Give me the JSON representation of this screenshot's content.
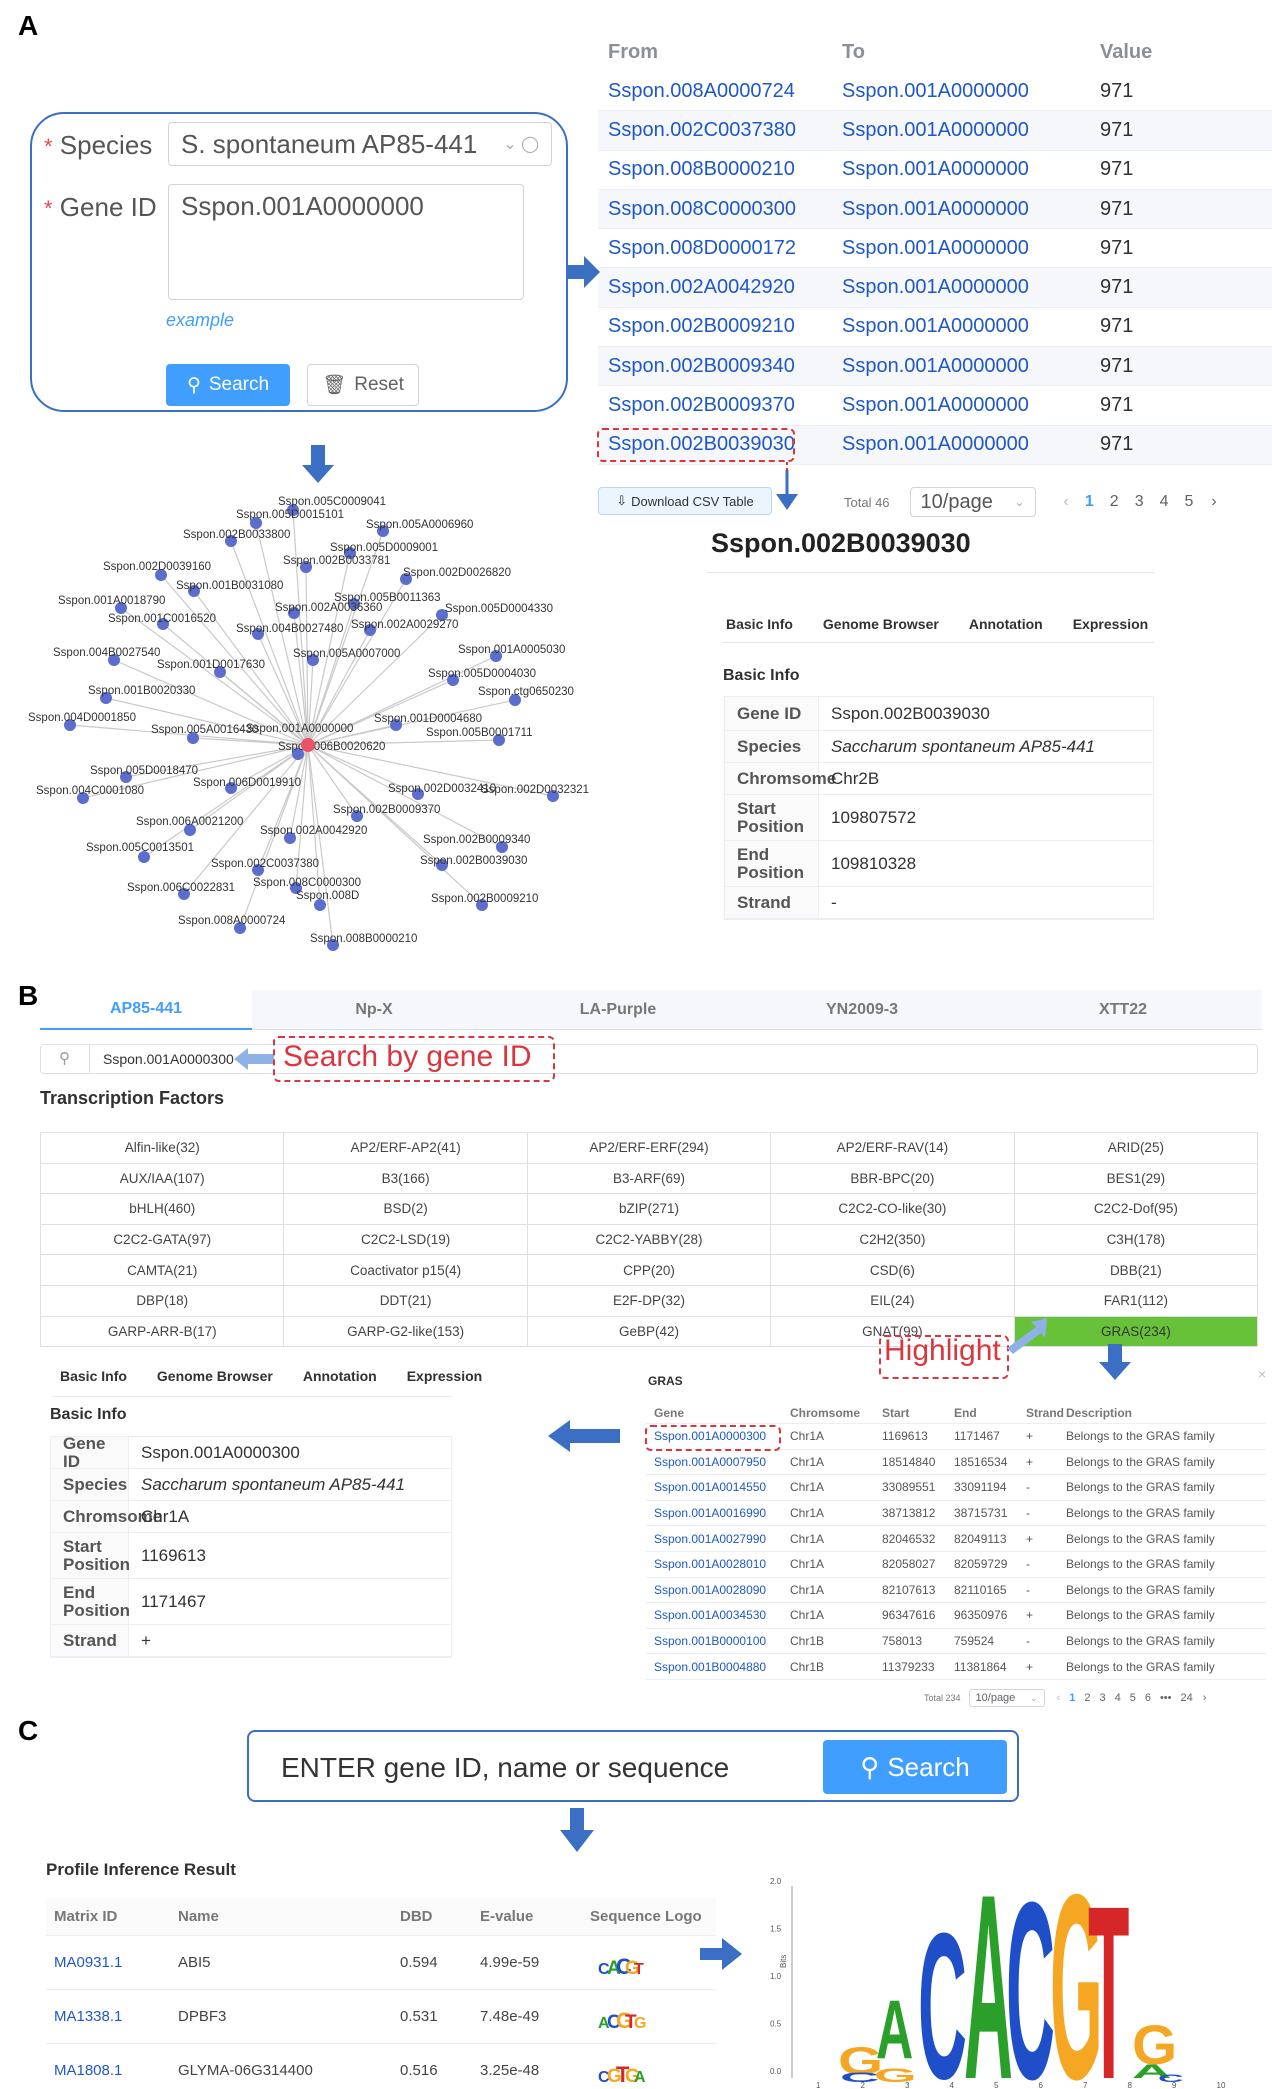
{
  "panels": {
    "a": "A",
    "b": "B",
    "c": "C"
  },
  "search_form": {
    "species_label": "Species",
    "species_value": "S. spontaneum AP85-441",
    "geneid_label": "Gene ID",
    "geneid_value": "Sspon.001A0000000",
    "example": "example",
    "search": "Search",
    "reset": "Reset"
  },
  "relation_table": {
    "headers": [
      "From",
      "To",
      "Value"
    ],
    "rows": [
      [
        "Sspon.008A0000724",
        "Sspon.001A0000000",
        "971"
      ],
      [
        "Sspon.002C0037380",
        "Sspon.001A0000000",
        "971"
      ],
      [
        "Sspon.008B0000210",
        "Sspon.001A0000000",
        "971"
      ],
      [
        "Sspon.008C0000300",
        "Sspon.001A0000000",
        "971"
      ],
      [
        "Sspon.008D0000172",
        "Sspon.001A0000000",
        "971"
      ],
      [
        "Sspon.002A0042920",
        "Sspon.001A0000000",
        "971"
      ],
      [
        "Sspon.002B0009210",
        "Sspon.001A0000000",
        "971"
      ],
      [
        "Sspon.002B0009340",
        "Sspon.001A0000000",
        "971"
      ],
      [
        "Sspon.002B0009370",
        "Sspon.001A0000000",
        "971"
      ],
      [
        "Sspon.002B0039030",
        "Sspon.001A0000000",
        "971"
      ]
    ],
    "download": "Download CSV Table",
    "total": "Total 46",
    "per_page": "10/page",
    "pages": [
      "1",
      "2",
      "3",
      "4",
      "5"
    ]
  },
  "network": {
    "center": "Sspon.001A0000000",
    "nodes": [
      "Sspon.005C0009041",
      "Sspon.005D0015101",
      "Sspon.005A0006960",
      "Sspon.002B0033800",
      "Sspon.005D0009001",
      "Sspon.002B0033781",
      "Sspon.002D0039160",
      "Sspon.002D0026820",
      "Sspon.001B0031080",
      "Sspon.005B0011363",
      "Sspon.001A0018790",
      "Sspon.002A0036360",
      "Sspon.005D0004330",
      "Sspon.001C0016520",
      "Sspon.004B0027480",
      "Sspon.002A0029270",
      "Sspon.004B0027540",
      "Sspon.005A0007000",
      "Sspon.001A0005030",
      "Sspon.001D0017630",
      "Sspon.005D0004030",
      "Sspon.001B0020330",
      "Sspon.ctg0650230",
      "Sspon.004D0001850",
      "Sspon.001D0004680",
      "Sspon.005A0016430",
      "Sspon.005B0001711",
      "Sspon.006B0020620",
      "Sspon.005D0018470",
      "Sspon.004C0001080",
      "Sspon.006D0019910",
      "Sspon.002D0032410",
      "Sspon.002D0032321",
      "Sspon.002B0009370",
      "Sspon.006A0021200",
      "Sspon.002A0042920",
      "Sspon.002B0009340",
      "Sspon.005C0013501",
      "Sspon.002C0037380",
      "Sspon.002B0039030",
      "Sspon.006C0022831",
      "Sspon.008C0000300",
      "Sspon.008D",
      "Sspon.002B0009210",
      "Sspon.008A0000724",
      "Sspon.008B0000210"
    ]
  },
  "detail_a": {
    "title": "Sspon.002B0039030",
    "tabs": [
      "Basic Info",
      "Genome Browser",
      "Annotation",
      "Expression"
    ],
    "section": "Basic Info",
    "rows": [
      {
        "k": "Gene ID",
        "v": "Sspon.002B0039030"
      },
      {
        "k": "Species",
        "v": "Saccharum spontaneum AP85-441"
      },
      {
        "k": "Chromsome",
        "v": "Chr2B"
      },
      {
        "k": "Start Position",
        "v": "109807572"
      },
      {
        "k": "End Position",
        "v": "109810328"
      },
      {
        "k": "Strand",
        "v": "-"
      }
    ]
  },
  "panel_b": {
    "tabs": [
      "AP85-441",
      "Np-X",
      "LA-Purple",
      "YN2009-3",
      "XTT22"
    ],
    "search_value": "Sspon.001A0000300",
    "search_note": "Search by gene ID",
    "tf_title": "Transcription Factors",
    "tf_grid": [
      [
        "Alfin-like(32)",
        "AP2/ERF-AP2(41)",
        "AP2/ERF-ERF(294)",
        "AP2/ERF-RAV(14)",
        "ARID(25)"
      ],
      [
        "AUX/IAA(107)",
        "B3(166)",
        "B3-ARF(69)",
        "BBR-BPC(20)",
        "BES1(29)"
      ],
      [
        "bHLH(460)",
        "BSD(2)",
        "bZIP(271)",
        "C2C2-CO-like(30)",
        "C2C2-Dof(95)"
      ],
      [
        "C2C2-GATA(97)",
        "C2C2-LSD(19)",
        "C2C2-YABBY(28)",
        "C2H2(350)",
        "C3H(178)"
      ],
      [
        "CAMTA(21)",
        "Coactivator p15(4)",
        "CPP(20)",
        "CSD(6)",
        "DBB(21)"
      ],
      [
        "DBP(18)",
        "DDT(21)",
        "E2F-DP(32)",
        "EIL(24)",
        "FAR1(112)"
      ],
      [
        "GARP-ARR-B(17)",
        "GARP-G2-like(153)",
        "GeBP(42)",
        "GNAT(99)",
        "GRAS(234)"
      ]
    ],
    "highlight_note": "Highlight",
    "gras": {
      "title": "GRAS",
      "headers": [
        "Gene",
        "Chromsome",
        "Start",
        "End",
        "Strand",
        "Description"
      ],
      "rows": [
        [
          "Sspon.001A0000300",
          "Chr1A",
          "1169613",
          "1171467",
          "+",
          "Belongs to the GRAS family"
        ],
        [
          "Sspon.001A0007950",
          "Chr1A",
          "18514840",
          "18516534",
          "+",
          "Belongs to the GRAS family"
        ],
        [
          "Sspon.001A0014550",
          "Chr1A",
          "33089551",
          "33091194",
          "-",
          "Belongs to the GRAS family"
        ],
        [
          "Sspon.001A0016990",
          "Chr1A",
          "38713812",
          "38715731",
          "-",
          "Belongs to the GRAS family"
        ],
        [
          "Sspon.001A0027990",
          "Chr1A",
          "82046532",
          "82049113",
          "+",
          "Belongs to the GRAS family"
        ],
        [
          "Sspon.001A0028010",
          "Chr1A",
          "82058027",
          "82059729",
          "-",
          "Belongs to the GRAS family"
        ],
        [
          "Sspon.001A0028090",
          "Chr1A",
          "82107613",
          "82110165",
          "-",
          "Belongs to the GRAS family"
        ],
        [
          "Sspon.001A0034530",
          "Chr1A",
          "96347616",
          "96350976",
          "+",
          "Belongs to the GRAS family"
        ],
        [
          "Sspon.001B0000100",
          "Chr1B",
          "758013",
          "759524",
          "-",
          "Belongs to the GRAS family"
        ],
        [
          "Sspon.001B0004880",
          "Chr1B",
          "11379233",
          "11381864",
          "+",
          "Belongs to the GRAS family"
        ]
      ],
      "total": "Total 234",
      "per_page": "10/page",
      "pages": [
        "1",
        "2",
        "3",
        "4",
        "5",
        "6",
        "•••",
        "24"
      ]
    },
    "detail": {
      "tabs": [
        "Basic Info",
        "Genome Browser",
        "Annotation",
        "Expression"
      ],
      "section": "Basic Info",
      "rows": [
        {
          "k": "Gene ID",
          "v": "Sspon.001A0000300"
        },
        {
          "k": "Species",
          "v": "Saccharum spontaneum AP85-441"
        },
        {
          "k": "Chromsome",
          "v": "Chr1A"
        },
        {
          "k": "Start Position",
          "v": "1169613"
        },
        {
          "k": "End Position",
          "v": "1171467"
        },
        {
          "k": "Strand",
          "v": "+"
        }
      ]
    }
  },
  "panel_c": {
    "search_placeholder": "ENTER gene ID, name or sequence",
    "search_button": "Search",
    "result_title": "Profile Inference Result",
    "headers": [
      "Matrix ID",
      "Name",
      "DBD",
      "E-value",
      "Sequence Logo"
    ],
    "rows": [
      [
        "MA0931.1",
        "ABI5",
        "0.594",
        "4.99e-59"
      ],
      [
        "MA1338.1",
        "DPBF3",
        "0.531",
        "7.48e-49"
      ],
      [
        "MA1808.1",
        "GLYMA-06G314400",
        "0.516",
        "3.25e-48"
      ]
    ],
    "logo": {
      "y_label": "Bits",
      "y_ticks": [
        "2.0",
        "1.5",
        "1.0",
        "0.5",
        "0.0"
      ],
      "x_ticks": [
        "1",
        "2",
        "3",
        "4",
        "5",
        "6",
        "7",
        "8",
        "9",
        "10"
      ],
      "letters": [
        "C",
        "A",
        "C",
        "G",
        "T"
      ],
      "colors": {
        "A": "#2aa02b",
        "C": "#1f4fc8",
        "G": "#f5a623",
        "T": "#d62728"
      }
    }
  }
}
